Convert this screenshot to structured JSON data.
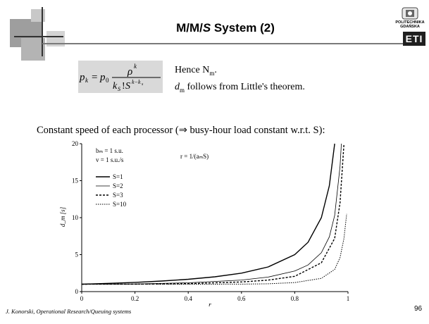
{
  "slide": {
    "title_prefix": "M/M/",
    "title_italic": "S",
    "title_suffix": " System (2)",
    "note_line1": "Hence N",
    "note_line1_sub": "m",
    "note_line1_end": ".",
    "note_line2_var": "d",
    "note_line2_sub": "m",
    "note_line2_rest": " follows from Little's theorem.",
    "caption": "Constant speed of each processor (⇒ busy-hour load constant w.r.t. S):",
    "footer": "J. Konorski, Operational Research/Queuing systems",
    "page_number": "96",
    "logo_text_line1": "POLITECHNIKA",
    "logo_text_line2": "GDAŃSKA",
    "logo_mark": "ETI",
    "formula_text": "p_k = p_0 ρ^k / (k_s! S^(k−k_s))"
  },
  "chart_data": {
    "type": "line",
    "xlabel": "r",
    "ylabel": "d_m [s]",
    "xlim": [
      0,
      1
    ],
    "ylim": [
      0,
      20
    ],
    "xticks": [
      "0",
      "0.2",
      "0.4",
      "0.6",
      "0.8",
      "1"
    ],
    "yticks": [
      "0",
      "5",
      "10",
      "15",
      "20"
    ],
    "params_line1": "bₘ = 1 s.u.",
    "params_line2": "v = 1 s.u./s",
    "params_line3": "r = 1/(aₘS)",
    "legend_position": "top-left",
    "series": [
      {
        "name": "S=1",
        "dash": "solid",
        "values": [
          [
            0,
            1.0
          ],
          [
            0.1,
            1.11
          ],
          [
            0.2,
            1.25
          ],
          [
            0.3,
            1.43
          ],
          [
            0.4,
            1.67
          ],
          [
            0.5,
            2.0
          ],
          [
            0.6,
            2.5
          ],
          [
            0.7,
            3.33
          ],
          [
            0.8,
            5.0
          ],
          [
            0.85,
            6.67
          ],
          [
            0.9,
            10.0
          ],
          [
            0.93,
            14.3
          ],
          [
            0.95,
            20.0
          ]
        ]
      },
      {
        "name": "S=2",
        "dash": "thin",
        "values": [
          [
            0,
            1.0
          ],
          [
            0.2,
            1.04
          ],
          [
            0.4,
            1.19
          ],
          [
            0.6,
            1.56
          ],
          [
            0.7,
            1.96
          ],
          [
            0.8,
            2.78
          ],
          [
            0.85,
            3.6
          ],
          [
            0.9,
            5.26
          ],
          [
            0.93,
            7.4
          ],
          [
            0.95,
            10.3
          ],
          [
            0.97,
            16.9
          ],
          [
            0.975,
            20.0
          ]
        ]
      },
      {
        "name": "S=3",
        "dash": "dashed",
        "values": [
          [
            0,
            1.0
          ],
          [
            0.2,
            1.01
          ],
          [
            0.4,
            1.08
          ],
          [
            0.6,
            1.3
          ],
          [
            0.7,
            1.55
          ],
          [
            0.8,
            2.07
          ],
          [
            0.9,
            3.9
          ],
          [
            0.95,
            7.2
          ],
          [
            0.97,
            12.0
          ],
          [
            0.985,
            20.0
          ]
        ]
      },
      {
        "name": "S=10",
        "dash": "dotted",
        "values": [
          [
            0,
            1.0
          ],
          [
            0.4,
            1.0
          ],
          [
            0.6,
            1.01
          ],
          [
            0.7,
            1.06
          ],
          [
            0.8,
            1.22
          ],
          [
            0.9,
            1.79
          ],
          [
            0.95,
            3.0
          ],
          [
            0.97,
            4.6
          ],
          [
            0.985,
            7.2
          ],
          [
            0.995,
            10.5
          ]
        ]
      }
    ]
  }
}
